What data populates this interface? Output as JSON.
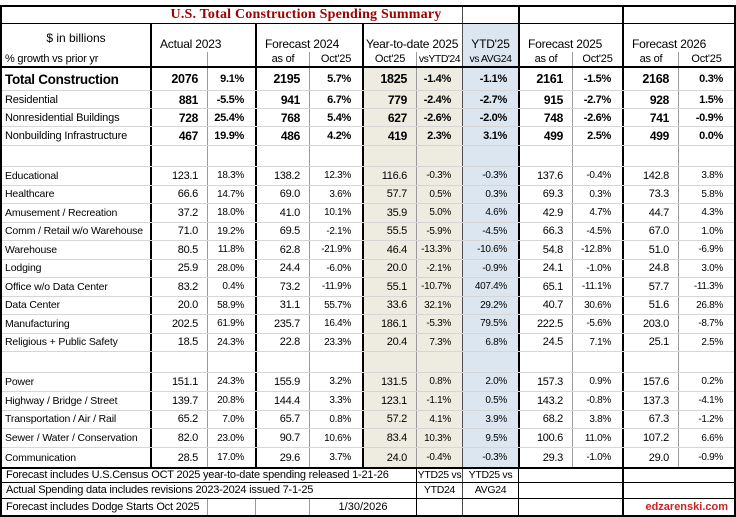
{
  "title": "U.S. Total Construction Spending Summary",
  "colors": {
    "title_red": "#a00000",
    "site_red": "#cc2222",
    "beige": "#eeece1",
    "blue": "#dce6f1"
  },
  "header": {
    "row_label_top": "$ in billions",
    "row_label_bottom": "% growth vs prior yr",
    "groups": [
      {
        "label": "Actual 2023",
        "sub": [
          "",
          ""
        ]
      },
      {
        "label": "Forecast 2024",
        "sub": [
          "as of",
          "Oct'25"
        ]
      },
      {
        "label": "Year-to-date 2025",
        "sub": [
          "Oct'25",
          "vsYTD'24"
        ]
      },
      {
        "label": "YTD'25",
        "sub": [
          "vs AVG24"
        ]
      },
      {
        "label": "Forecast 2025",
        "sub": [
          "as of",
          "Oct'25"
        ]
      },
      {
        "label": "Forecast 2026",
        "sub": [
          "as of",
          "Oct'25"
        ]
      }
    ]
  },
  "sections": {
    "summary": {
      "rows": [
        {
          "label": "Total Construction",
          "values": [
            "2076",
            "9.1%",
            "2195",
            "5.7%",
            "1825",
            "-1.4%",
            "-1.1%",
            "2161",
            "-1.5%",
            "2168",
            "0.3%"
          ]
        },
        {
          "label": "Residential",
          "values": [
            "881",
            "-5.5%",
            "941",
            "6.7%",
            "779",
            "-2.4%",
            "-2.7%",
            "915",
            "-2.7%",
            "928",
            "1.5%"
          ]
        },
        {
          "label": "Nonresidential Buildings",
          "values": [
            "728",
            "25.4%",
            "768",
            "5.4%",
            "627",
            "-2.6%",
            "-2.0%",
            "748",
            "-2.6%",
            "741",
            "-0.9%"
          ]
        },
        {
          "label": "Nonbuilding Infrastructure",
          "values": [
            "467",
            "19.9%",
            "486",
            "4.2%",
            "419",
            "2.3%",
            "3.1%",
            "499",
            "2.5%",
            "499",
            "0.0%"
          ]
        }
      ]
    },
    "buildings": {
      "rows": [
        {
          "label": "Educational",
          "values": [
            "123.1",
            "18.3%",
            "138.2",
            "12.3%",
            "116.6",
            "-0.3%",
            "-0.3%",
            "137.6",
            "-0.4%",
            "142.8",
            "3.8%"
          ]
        },
        {
          "label": "Healthcare",
          "values": [
            "66.6",
            "14.7%",
            "69.0",
            "3.6%",
            "57.7",
            "0.5%",
            "0.3%",
            "69.3",
            "0.3%",
            "73.3",
            "5.8%"
          ]
        },
        {
          "label": "Amusement / Recreation",
          "values": [
            "37.2",
            "18.0%",
            "41.0",
            "10.1%",
            "35.9",
            "5.0%",
            "4.6%",
            "42.9",
            "4.7%",
            "44.7",
            "4.3%"
          ]
        },
        {
          "label": "Comm / Retail w/o Warehouse",
          "values": [
            "71.0",
            "19.2%",
            "69.5",
            "-2.1%",
            "55.5",
            "-5.9%",
            "-4.5%",
            "66.3",
            "-4.5%",
            "67.0",
            "1.0%"
          ]
        },
        {
          "label": "Warehouse",
          "values": [
            "80.5",
            "11.8%",
            "62.8",
            "-21.9%",
            "46.4",
            "-13.3%",
            "-10.6%",
            "54.8",
            "-12.8%",
            "51.0",
            "-6.9%"
          ]
        },
        {
          "label": "Lodging",
          "values": [
            "25.9",
            "28.0%",
            "24.4",
            "-6.0%",
            "20.0",
            "-2.1%",
            "-0.9%",
            "24.1",
            "-1.0%",
            "24.8",
            "3.0%"
          ]
        },
        {
          "label": "Office w/o Data Center",
          "values": [
            "83.2",
            "0.4%",
            "73.2",
            "-11.9%",
            "55.1",
            "-10.7%",
            "407.4%",
            "65.1",
            "-11.1%",
            "57.7",
            "-11.3%"
          ]
        },
        {
          "label": "Data Center",
          "values": [
            "20.0",
            "58.9%",
            "31.1",
            "55.7%",
            "33.6",
            "32.1%",
            "29.2%",
            "40.7",
            "30.6%",
            "51.6",
            "26.8%"
          ]
        },
        {
          "label": "Manufacturing",
          "values": [
            "202.5",
            "61.9%",
            "235.7",
            "16.4%",
            "186.1",
            "-5.3%",
            "79.5%",
            "222.5",
            "-5.6%",
            "203.0",
            "-8.7%"
          ]
        },
        {
          "label": "Religious + Public Safety",
          "values": [
            "18.5",
            "24.3%",
            "22.8",
            "23.3%",
            "20.4",
            "7.3%",
            "6.8%",
            "24.5",
            "7.1%",
            "25.1",
            "2.5%"
          ]
        }
      ]
    },
    "infrastructure": {
      "rows": [
        {
          "label": "Power",
          "values": [
            "151.1",
            "24.3%",
            "155.9",
            "3.2%",
            "131.5",
            "0.8%",
            "2.0%",
            "157.3",
            "0.9%",
            "157.6",
            "0.2%"
          ]
        },
        {
          "label": "Highway / Bridge / Street",
          "values": [
            "139.7",
            "20.8%",
            "144.4",
            "3.3%",
            "123.1",
            "-1.1%",
            "0.5%",
            "143.2",
            "-0.8%",
            "137.3",
            "-4.1%"
          ]
        },
        {
          "label": "Transportation / Air / Rail",
          "values": [
            "65.2",
            "7.0%",
            "65.7",
            "0.8%",
            "57.2",
            "4.1%",
            "3.9%",
            "68.2",
            "3.8%",
            "67.3",
            "-1.2%"
          ]
        },
        {
          "label": "Sewer / Water / Conservation",
          "values": [
            "82.0",
            "23.0%",
            "90.7",
            "10.6%",
            "83.4",
            "10.3%",
            "9.5%",
            "100.6",
            "11.0%",
            "107.2",
            "6.6%"
          ]
        },
        {
          "label": "Communication",
          "values": [
            "28.5",
            "17.0%",
            "29.6",
            "3.7%",
            "24.0",
            "-0.4%",
            "-0.3%",
            "29.3",
            "-1.0%",
            "29.0",
            "-0.9%"
          ]
        }
      ]
    }
  },
  "footer": {
    "notes": [
      "Forecast includes U.S.Census OCT 2025 year-to-date spending released 1-21-26",
      "Actual Spending data includes revisions 2023-2024 issued 7-1-25",
      "Forecast includes Dodge Starts Oct 2025"
    ],
    "ytd_label_top": "YTD25 vs",
    "ytd_label_bottom": "YTD24",
    "avg_label_top": "YTD25 vs",
    "avg_label_bottom": "AVG24",
    "date": "1/30/2026",
    "site": "edzarenski.com"
  }
}
